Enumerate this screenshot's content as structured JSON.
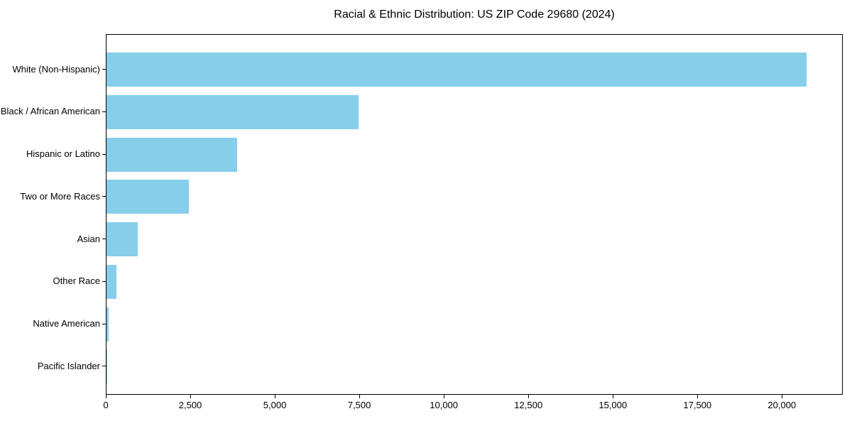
{
  "figure": {
    "title": "Racial & Ethnic Distribution: US ZIP Code 29680 (2024)"
  },
  "chart_data": {
    "type": "bar",
    "orientation": "horizontal",
    "title": "Racial & Ethnic Distribution: US ZIP Code 29680 (2024)",
    "categories": [
      "White (Non-Hispanic)",
      "Black / African American",
      "Hispanic or Latino",
      "Two or More Races",
      "Asian",
      "Other Race",
      "Native American",
      "Pacific Islander"
    ],
    "values": [
      20700,
      7450,
      3860,
      2430,
      920,
      290,
      60,
      15
    ],
    "xlabel": "",
    "ylabel": "",
    "xlim": [
      0,
      21800
    ],
    "xticks": {
      "values": [
        0,
        2500,
        5000,
        7500,
        10000,
        12500,
        15000,
        17500,
        20000
      ],
      "labels": [
        "0",
        "2,500",
        "5,000",
        "7,500",
        "10,000",
        "12,500",
        "15,000",
        "17,500",
        "20,000"
      ]
    },
    "grid": false,
    "legend_position": "none",
    "bar_color": "#87CEEB",
    "axis_color": "#000000",
    "text_color": "#000000",
    "background_color": "#ffffff"
  }
}
